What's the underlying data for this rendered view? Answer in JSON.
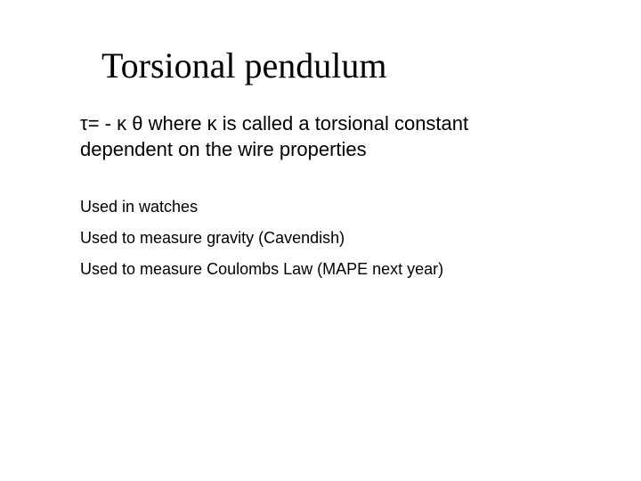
{
  "title": "Torsional pendulum",
  "equation": {
    "pre_tau": "",
    "tau": "t",
    "mid1": "= - ",
    "kappa1": "k",
    "space1": " ",
    "theta": "q",
    "mid2": "  where ",
    "kappa2": "k",
    "rest_line1": " is called a torsional constant",
    "line2": "dependent on the wire properties"
  },
  "bullets": {
    "b1": "Used in watches",
    "b2": "Used to measure gravity (Cavendish)",
    "b3": "Used to measure Coulombs Law (MAPE next year)"
  },
  "colors": {
    "background": "#ffffff",
    "text": "#000000"
  },
  "fonts": {
    "title_family": "Times New Roman",
    "title_size_pt": 40,
    "body_family": "Arial",
    "equation_size_pt": 22,
    "bullet_size_pt": 18
  }
}
